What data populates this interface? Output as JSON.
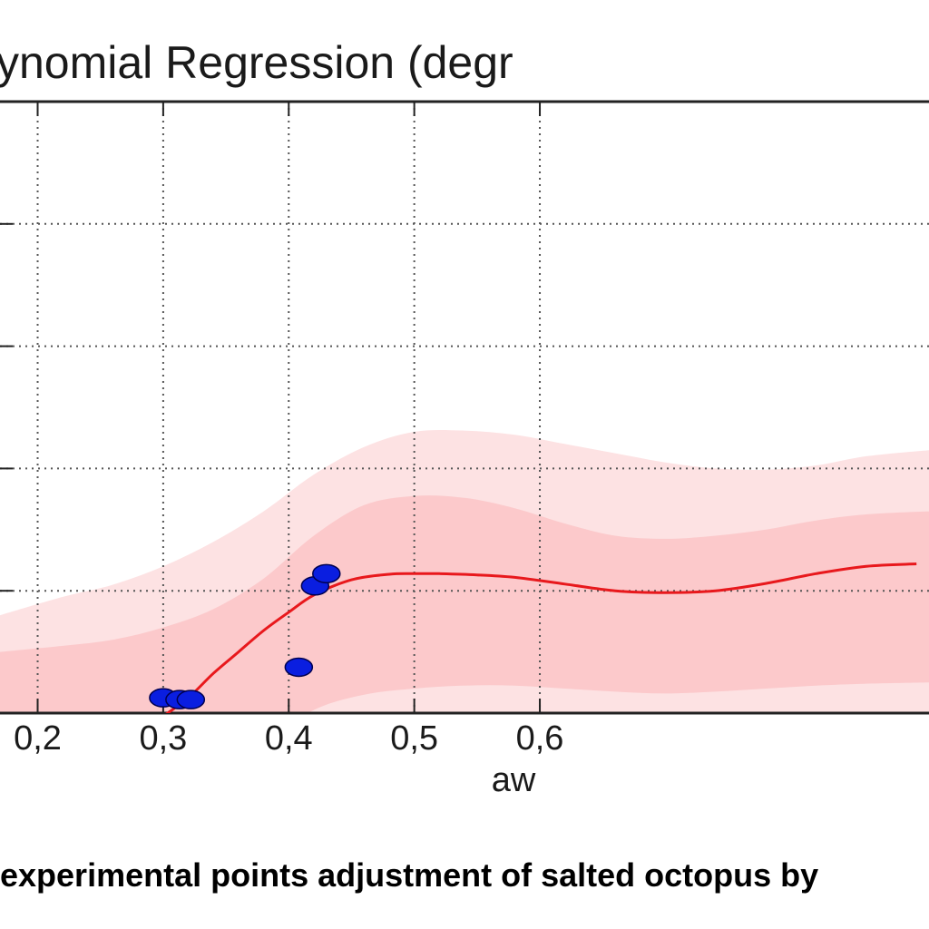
{
  "chart_data": {
    "type": "scatter",
    "title": "ynomial Regression (degr",
    "xlabel": "aw",
    "ylabel": "",
    "xlim": [
      0.17,
      0.91
    ],
    "ylim": [
      0,
      1
    ],
    "x_ticks": [
      0.2,
      0.3,
      0.4,
      0.5,
      0.6
    ],
    "x_tick_labels": [
      "0,2",
      "0,3",
      "0,4",
      "0,5",
      "0,6"
    ],
    "y_gridlines": [
      0.2,
      0.4,
      0.6,
      0.8
    ],
    "grid": true,
    "series": [
      {
        "points": [
          {
            "x": 0.3,
            "y": 0.025
          },
          {
            "x": 0.313,
            "y": 0.022
          },
          {
            "x": 0.322,
            "y": 0.022
          },
          {
            "x": 0.408,
            "y": 0.075
          },
          {
            "x": 0.421,
            "y": 0.208
          },
          {
            "x": 0.43,
            "y": 0.228
          }
        ]
      },
      {
        "x": [
          0.3,
          0.32,
          0.34,
          0.36,
          0.38,
          0.4,
          0.42,
          0.45,
          0.48,
          0.5,
          0.52,
          0.55,
          0.58,
          0.62,
          0.66,
          0.7,
          0.74,
          0.78,
          0.82,
          0.86,
          0.9
        ],
        "y": [
          -0.005,
          0.025,
          0.065,
          0.1,
          0.135,
          0.165,
          0.193,
          0.218,
          0.227,
          0.228,
          0.228,
          0.226,
          0.222,
          0.211,
          0.2,
          0.197,
          0.2,
          0.212,
          0.228,
          0.24,
          0.244
        ]
      }
    ],
    "bands": [
      {
        "x": [
          0.17,
          0.22,
          0.26,
          0.3,
          0.34,
          0.38,
          0.42,
          0.46,
          0.5,
          0.54,
          0.58,
          0.62,
          0.66,
          0.7,
          0.74,
          0.78,
          0.82,
          0.86,
          0.91
        ],
        "upper": [
          0.16,
          0.19,
          0.21,
          0.24,
          0.28,
          0.33,
          0.39,
          0.435,
          0.46,
          0.462,
          0.455,
          0.44,
          0.425,
          0.41,
          0.4,
          0.398,
          0.405,
          0.42,
          0.43
        ],
        "lower": [
          -0.1,
          -0.1,
          -0.1,
          -0.1,
          -0.1,
          -0.1,
          -0.09,
          -0.06,
          -0.04,
          -0.03,
          -0.03,
          -0.035,
          -0.045,
          -0.055,
          -0.06,
          -0.06,
          -0.055,
          -0.05,
          -0.05
        ],
        "color": "#fde2e3"
      },
      {
        "x": [
          0.17,
          0.22,
          0.26,
          0.3,
          0.34,
          0.38,
          0.42,
          0.46,
          0.5,
          0.54,
          0.58,
          0.62,
          0.66,
          0.7,
          0.74,
          0.78,
          0.82,
          0.86,
          0.91
        ],
        "upper": [
          0.1,
          0.11,
          0.12,
          0.14,
          0.17,
          0.22,
          0.29,
          0.34,
          0.355,
          0.352,
          0.335,
          0.31,
          0.29,
          0.285,
          0.29,
          0.3,
          0.315,
          0.325,
          0.33
        ],
        "lower": [
          -0.1,
          -0.1,
          -0.1,
          -0.1,
          -0.1,
          -0.05,
          0.005,
          0.03,
          0.04,
          0.045,
          0.045,
          0.04,
          0.035,
          0.032,
          0.035,
          0.04,
          0.045,
          0.048,
          0.05
        ],
        "color": "#fcc9cb"
      }
    ],
    "colors": {
      "points": "#0a1ee0",
      "points_edge": "#000050",
      "fit_line": "#e8181c",
      "grid": "#555555"
    }
  },
  "caption": "experimental points adjustment of salted octopus by"
}
